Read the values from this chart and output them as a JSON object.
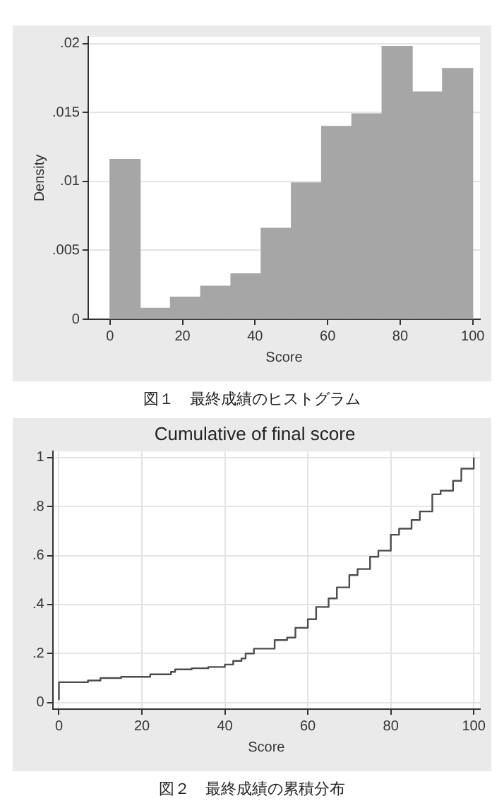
{
  "chart_data": [
    {
      "type": "histogram",
      "xlabel": "Score",
      "ylabel": "Density",
      "bins": [
        0,
        8.333,
        16.667,
        25,
        33.333,
        41.667,
        50,
        58.333,
        66.667,
        75,
        83.333,
        91.667,
        100
      ],
      "values": [
        0.0116,
        0.0008,
        0.0016,
        0.0024,
        0.0033,
        0.0066,
        0.0099,
        0.014,
        0.0149,
        0.0198,
        0.0165,
        0.0182
      ],
      "color": "#a6a6a6",
      "xlim": [
        -6,
        102
      ],
      "ylim": [
        0,
        0.0205
      ],
      "xticks": [
        0,
        20,
        40,
        60,
        80,
        100
      ],
      "yticks": [
        {
          "value": 0,
          "label": "0"
        },
        {
          "value": 0.005,
          "label": ".005"
        },
        {
          "value": 0.01,
          "label": ".01"
        },
        {
          "value": 0.015,
          "label": ".015"
        },
        {
          "value": 0.02,
          "label": ".02"
        }
      ],
      "grid": "y",
      "annotations": [
        "図１　最終成績のヒストグラム"
      ]
    },
    {
      "type": "step",
      "title": "Cumulative of final score",
      "xlabel": "Score",
      "series": [
        {
          "color": "#4d4d4d",
          "x": [
            0,
            0,
            7,
            10,
            15,
            22,
            27,
            28,
            32,
            36,
            40,
            42,
            44,
            45,
            47,
            52,
            55,
            57,
            60,
            62,
            65,
            67,
            70,
            72,
            75,
            77,
            80,
            82,
            85,
            87,
            90,
            92,
            95,
            97,
            100
          ],
          "values": [
            0.01,
            0.083,
            0.09,
            0.1,
            0.105,
            0.115,
            0.125,
            0.135,
            0.14,
            0.145,
            0.155,
            0.17,
            0.18,
            0.2,
            0.22,
            0.255,
            0.265,
            0.305,
            0.34,
            0.39,
            0.425,
            0.47,
            0.52,
            0.545,
            0.595,
            0.62,
            0.685,
            0.71,
            0.745,
            0.78,
            0.85,
            0.865,
            0.905,
            0.955,
            1.0
          ]
        }
      ],
      "xlim": [
        -1.5,
        101.5
      ],
      "ylim": [
        -0.027,
        1.025
      ],
      "xticks": [
        0,
        20,
        40,
        60,
        80,
        100
      ],
      "yticks": [
        {
          "value": 0,
          "label": "0"
        },
        {
          "value": 0.2,
          "label": ".2"
        },
        {
          "value": 0.4,
          "label": ".4"
        },
        {
          "value": 0.6,
          "label": ".6"
        },
        {
          "value": 0.8,
          "label": ".8"
        },
        {
          "value": 1,
          "label": "1"
        }
      ],
      "grid": true,
      "annotations": [
        "図２　最終成績の累積分布"
      ]
    }
  ]
}
